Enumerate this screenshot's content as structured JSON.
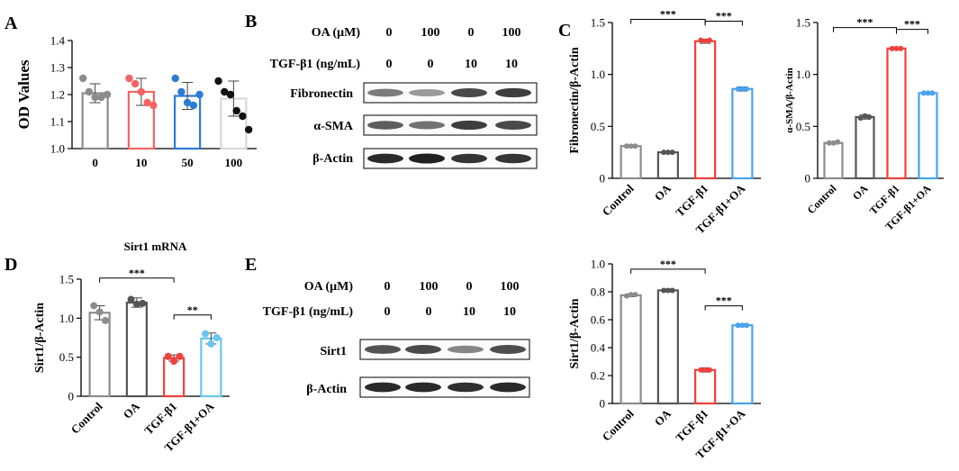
{
  "chart_data": [
    {
      "panel": "A",
      "type": "bar",
      "title": "",
      "xlabel": "",
      "ylabel": "OD Values",
      "ylim": [
        1.0,
        1.4
      ],
      "yticks": [
        "1.0",
        "1.1",
        "1.2",
        "1.3",
        "1.4"
      ],
      "categories": [
        "0",
        "10",
        "50",
        "100"
      ],
      "values": [
        1.205,
        1.21,
        1.195,
        1.185
      ],
      "errors": [
        0.035,
        0.05,
        0.05,
        0.065
      ],
      "colors": [
        "#8c8c8c",
        "#f46464",
        "#2e7bd6",
        "#d8d8d8"
      ],
      "dot_colors": [
        "#8c8c8c",
        "#f46464",
        "#2e7bd6",
        "#111111"
      ],
      "points": [
        [
          1.26,
          1.21,
          1.19,
          1.19,
          1.2
        ],
        [
          1.26,
          1.24,
          1.21,
          1.17,
          1.16
        ],
        [
          1.26,
          1.21,
          1.17,
          1.16,
          1.2
        ],
        [
          1.25,
          1.21,
          1.2,
          1.14,
          1.12,
          1.07
        ]
      ],
      "significance": []
    },
    {
      "panel": "C",
      "type": "bar",
      "title": "",
      "xlabel": "",
      "ylabel": "Fibronectin/β-Actin",
      "ylim": [
        0,
        1.5
      ],
      "yticks": [
        "0",
        "0.5",
        "1.0",
        "1.5"
      ],
      "categories": [
        "Control",
        "OA",
        "TGF-β1",
        "TGF-β1+OA"
      ],
      "values": [
        0.31,
        0.25,
        1.32,
        0.86
      ],
      "errors": [
        0.01,
        0.01,
        0.02,
        0.02
      ],
      "colors": [
        "#8c8c8c",
        "#555555",
        "#f0413c",
        "#4aa3ef"
      ],
      "dot_colors": [
        "#8c8c8c",
        "#555555",
        "#f0413c",
        "#4aa3ef"
      ],
      "points": [
        [
          0.31,
          0.31,
          0.31
        ],
        [
          0.25,
          0.25,
          0.25
        ],
        [
          1.33,
          1.32,
          1.33
        ],
        [
          0.86,
          0.86,
          0.86
        ]
      ],
      "significance": [
        {
          "from": 0,
          "to": 2,
          "label": "***"
        },
        {
          "from": 2,
          "to": 3,
          "label": "***"
        }
      ]
    },
    {
      "panel": "C2",
      "type": "bar",
      "title": "",
      "xlabel": "",
      "ylabel": "α-SMA/β-Actin",
      "ylim": [
        0,
        1.5
      ],
      "yticks": [
        "0",
        "0.5",
        "1.0",
        "1.5"
      ],
      "categories": [
        "Control",
        "OA",
        "TGF-β1",
        "TGF-β1+OA"
      ],
      "values": [
        0.34,
        0.59,
        1.25,
        0.82
      ],
      "errors": [
        0.01,
        0.02,
        0.01,
        0.01
      ],
      "colors": [
        "#8c8c8c",
        "#555555",
        "#f0413c",
        "#4aa3ef"
      ],
      "dot_colors": [
        "#8c8c8c",
        "#555555",
        "#f0413c",
        "#4aa3ef"
      ],
      "points": [
        [
          0.34,
          0.34,
          0.35
        ],
        [
          0.58,
          0.6,
          0.59
        ],
        [
          1.25,
          1.25,
          1.25
        ],
        [
          0.82,
          0.82,
          0.82
        ]
      ],
      "significance": [
        {
          "from": 0,
          "to": 2,
          "label": "***"
        },
        {
          "from": 2,
          "to": 3,
          "label": "***"
        }
      ]
    },
    {
      "panel": "D",
      "type": "bar",
      "title": "Sirt1 mRNA",
      "xlabel": "",
      "ylabel": "Sirt1/β-Actin",
      "ylim": [
        0,
        1.5
      ],
      "yticks": [
        "0",
        "0.5",
        "1.0",
        "1.5"
      ],
      "categories": [
        "Control",
        "OA",
        "TGF-β1",
        "TGF-β1+OA"
      ],
      "values": [
        1.07,
        1.2,
        0.49,
        0.74
      ],
      "errors": [
        0.09,
        0.06,
        0.04,
        0.07
      ],
      "colors": [
        "#8c8c8c",
        "#555555",
        "#f0413c",
        "#66c6ee"
      ],
      "dot_colors": [
        "#8c8c8c",
        "#555555",
        "#f0413c",
        "#66c6ee"
      ],
      "points": [
        [
          1.16,
          1.08,
          0.97
        ],
        [
          1.24,
          1.18,
          1.19
        ],
        [
          0.51,
          0.45,
          0.51
        ],
        [
          0.8,
          0.67,
          0.75
        ]
      ],
      "significance": [
        {
          "from": 0,
          "to": 2,
          "label": "***"
        },
        {
          "from": 2,
          "to": 3,
          "label": "**"
        }
      ]
    },
    {
      "panel": "E",
      "type": "bar",
      "title": "",
      "xlabel": "",
      "ylabel": "Sirt1/β-Actin",
      "ylim": [
        0,
        1.0
      ],
      "yticks": [
        "0",
        "0.2",
        "0.4",
        "0.6",
        "0.8",
        "1.0"
      ],
      "categories": [
        "Control",
        "OA",
        "TGF-β1",
        "TGF-β1+OA"
      ],
      "values": [
        0.775,
        0.81,
        0.24,
        0.56
      ],
      "errors": [
        0.01,
        0.01,
        0.015,
        0.01
      ],
      "colors": [
        "#8c8c8c",
        "#555555",
        "#f0413c",
        "#4aa3ef"
      ],
      "dot_colors": [
        "#8c8c8c",
        "#555555",
        "#f0413c",
        "#4aa3ef"
      ],
      "points": [
        [
          0.77,
          0.78,
          0.78
        ],
        [
          0.81,
          0.81,
          0.81
        ],
        [
          0.24,
          0.24,
          0.24
        ],
        [
          0.56,
          0.56,
          0.56
        ]
      ],
      "significance": [
        {
          "from": 0,
          "to": 2,
          "label": "***"
        },
        {
          "from": 2,
          "to": 3,
          "label": "***"
        }
      ]
    }
  ],
  "panel_labels": {
    "A": "A",
    "B": "B",
    "C": "C",
    "D": "D",
    "E": "E"
  },
  "blot_B": {
    "oa_label": "OA (μM)",
    "oa_values": [
      "0",
      "100",
      "0",
      "100"
    ],
    "tgf_label": "TGF-β1 (ng/mL)",
    "tgf_values": [
      "0",
      "0",
      "10",
      "10"
    ],
    "bands": [
      {
        "label": "Fibronectin",
        "intensity": [
          0.55,
          0.4,
          0.8,
          0.85
        ]
      },
      {
        "label": "α-SMA",
        "intensity": [
          0.7,
          0.6,
          0.85,
          0.8
        ]
      },
      {
        "label": "β-Actin",
        "intensity": [
          0.95,
          1.0,
          0.9,
          0.9
        ]
      }
    ]
  },
  "blot_E": {
    "oa_label": "OA (μM)",
    "oa_values": [
      "0",
      "100",
      "0",
      "100"
    ],
    "tgf_label": "TGF-β1 (ng/mL)",
    "tgf_values": [
      "0",
      "0",
      "10",
      "10"
    ],
    "bands": [
      {
        "label": "Sirt1",
        "intensity": [
          0.75,
          0.8,
          0.5,
          0.78
        ]
      },
      {
        "label": "β-Actin",
        "intensity": [
          0.95,
          0.95,
          0.92,
          0.95
        ]
      }
    ]
  }
}
